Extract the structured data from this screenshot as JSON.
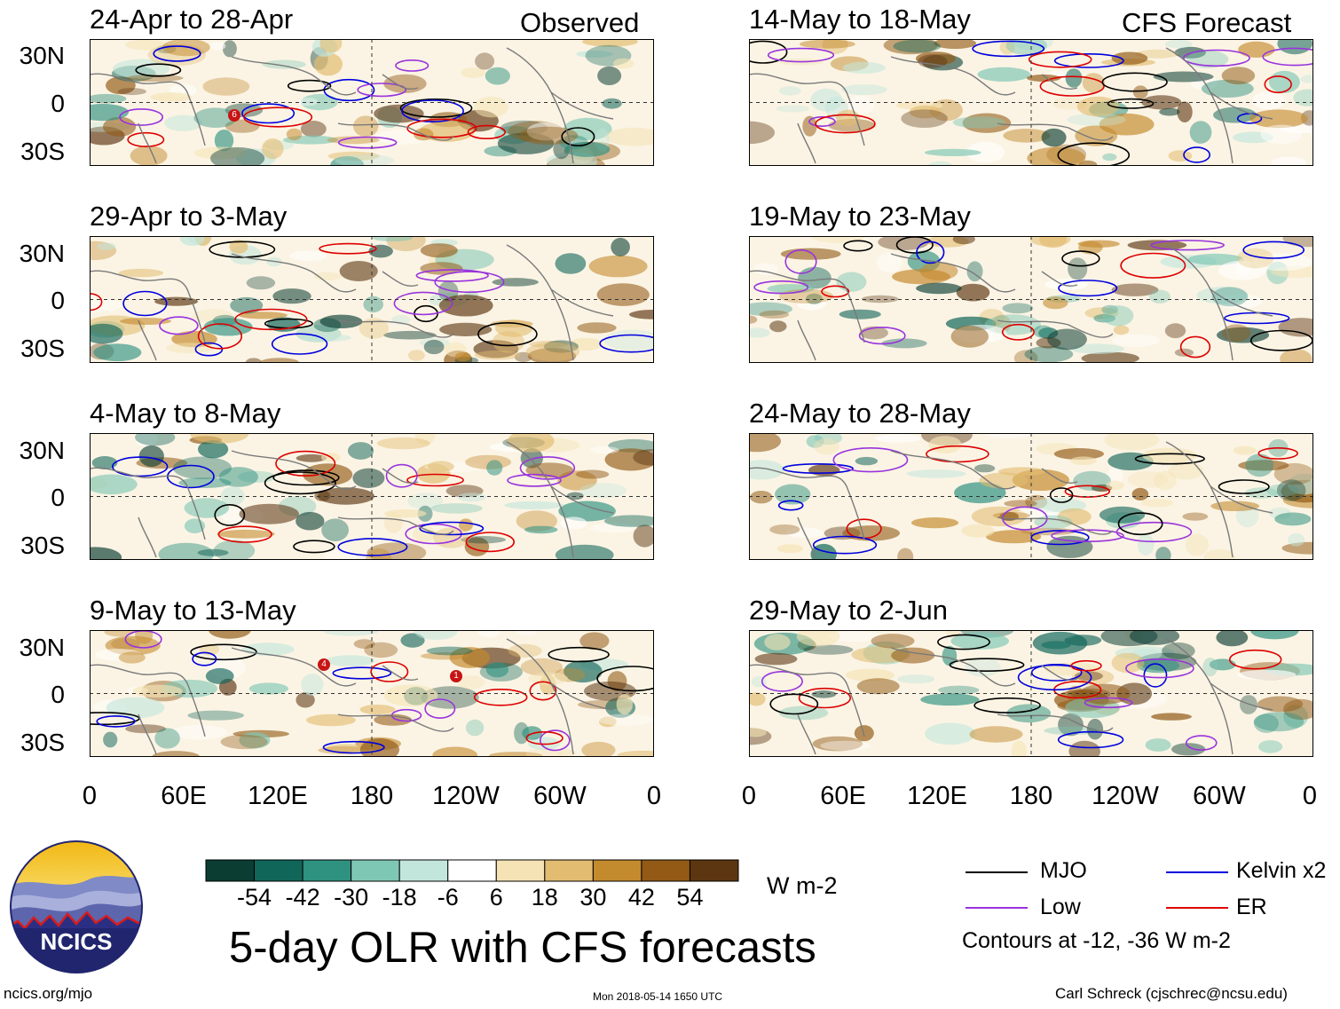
{
  "corner_labels": {
    "left": "Observed",
    "right": "CFS Forecast"
  },
  "panels": {
    "left": [
      {
        "title": "24-Apr to 28-Apr"
      },
      {
        "title": "29-Apr to 3-May"
      },
      {
        "title": "4-May to 8-May"
      },
      {
        "title": "9-May to 13-May"
      }
    ],
    "right": [
      {
        "title": "14-May to 18-May"
      },
      {
        "title": "19-May to 23-May"
      },
      {
        "title": "24-May to 28-May"
      },
      {
        "title": "29-May to 2-Jun"
      }
    ]
  },
  "y_ticks": [
    "30N",
    "0",
    "30S"
  ],
  "x_ticks": [
    "0",
    "60E",
    "120E",
    "180",
    "120W",
    "60W",
    "0"
  ],
  "tc_markers": {
    "panel1": [
      "6"
    ],
    "panel4": [
      "4",
      "1"
    ]
  },
  "colorbar": {
    "unit": "W m-2",
    "labels": [
      "-54",
      "-42",
      "-30",
      "-18",
      "-6",
      "6",
      "18",
      "30",
      "42",
      "54"
    ],
    "colors": [
      "#0b3d33",
      "#11665a",
      "#2f9180",
      "#7fc7b5",
      "#c3e6dc",
      "#ffffff",
      "#f5e3b5",
      "#e2bc70",
      "#c48a2e",
      "#925a15",
      "#5c3511"
    ]
  },
  "legend": {
    "items": [
      {
        "label": "MJO",
        "color": "#000000"
      },
      {
        "label": "Kelvin x2",
        "color": "#0000dd"
      },
      {
        "label": "Low",
        "color": "#9933dd"
      },
      {
        "label": "ER",
        "color": "#dd0000"
      }
    ],
    "note": "Contours at -12, -36 W m-2"
  },
  "main_title": "5-day OLR with CFS forecasts",
  "logo_text": "NCICS",
  "footer": {
    "left": "ncics.org/mjo",
    "center": "Mon 2018-05-14 1650 UTC",
    "right": "Carl Schreck (cjschrec@ncsu.edu)"
  }
}
